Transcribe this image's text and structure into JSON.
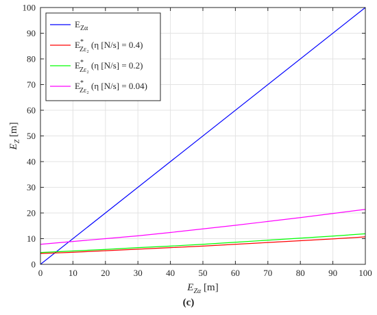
{
  "chart_data": {
    "type": "line",
    "xlim": [
      0,
      100
    ],
    "ylim": [
      0,
      100
    ],
    "xticks": [
      0,
      10,
      20,
      30,
      40,
      50,
      60,
      70,
      80,
      90,
      100
    ],
    "yticks": [
      0,
      10,
      20,
      30,
      40,
      50,
      60,
      70,
      80,
      90,
      100
    ],
    "xlabel": {
      "main": "E",
      "sub": "Zα",
      "unit": " [m]"
    },
    "ylabel": {
      "main": "E",
      "sub": "Z",
      "unit": " [m]"
    },
    "grid": true,
    "legend_position": "top-left",
    "series": [
      {
        "name": "E_Zα",
        "label": {
          "main": "E",
          "sub": "Zα",
          "sup": "",
          "suffix": ""
        },
        "color": "#0000ff",
        "x": [
          0,
          100
        ],
        "y": [
          0,
          100
        ]
      },
      {
        "name": "E*_Zε2 (η [N/s] = 0.4)",
        "label": {
          "main": "E",
          "sub": "Zε₂",
          "sup": "*",
          "suffix": "(η [N/s] = 0.4)"
        },
        "color": "#ff0000",
        "x": [
          0,
          10,
          20,
          30,
          40,
          50,
          60,
          70,
          80,
          90,
          100
        ],
        "y": [
          4.2,
          4.7,
          5.3,
          5.9,
          6.5,
          7.1,
          7.8,
          8.5,
          9.2,
          9.9,
          10.7
        ]
      },
      {
        "name": "E*_Zε2 (η [N/s] = 0.2)",
        "label": {
          "main": "E",
          "sub": "Zε₂",
          "sup": "*",
          "suffix": "(η [N/s] = 0.2)"
        },
        "color": "#00ff00",
        "x": [
          0,
          10,
          20,
          30,
          40,
          50,
          60,
          70,
          80,
          90,
          100
        ],
        "y": [
          4.6,
          5.2,
          5.8,
          6.5,
          7.1,
          7.8,
          8.6,
          9.4,
          10.2,
          11.0,
          11.9
        ]
      },
      {
        "name": "E*_Zε2 (η [N/s] = 0.04)",
        "label": {
          "main": "E",
          "sub": "Zε₂",
          "sup": "*",
          "suffix": "(η [N/s] = 0.04)"
        },
        "color": "#ff00ff",
        "x": [
          0,
          10,
          20,
          30,
          40,
          50,
          60,
          70,
          80,
          90,
          100
        ],
        "y": [
          7.8,
          8.9,
          10.0,
          11.1,
          12.4,
          13.8,
          15.2,
          16.7,
          18.2,
          19.8,
          21.4
        ]
      }
    ]
  },
  "panel_label": "(c)"
}
